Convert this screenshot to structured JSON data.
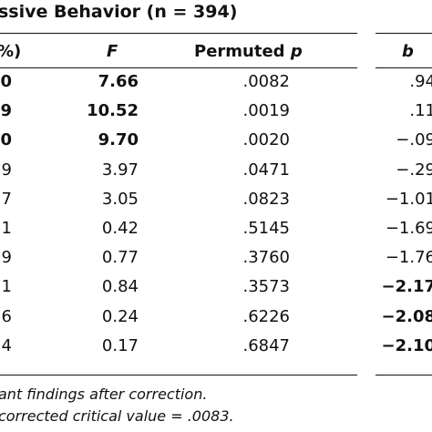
{
  "table": {
    "title": "ssive Behavior (n = 394)",
    "headers": {
      "pct": "%)",
      "F": "F",
      "permuted_p_prefix": "Permuted ",
      "permuted_p_italic": "p",
      "b": "b"
    },
    "rows": [
      {
        "pct": "0",
        "F": "7.66",
        "p": ".0082",
        "b": ".94",
        "bold_pct": true,
        "bold_F": true,
        "bold_b": false
      },
      {
        "pct": "9",
        "F": "10.52",
        "p": ".0019",
        "b": ".11",
        "bold_pct": true,
        "bold_F": true,
        "bold_b": false
      },
      {
        "pct": "0",
        "F": "9.70",
        "p": ".0020",
        "b": "−.09",
        "bold_pct": true,
        "bold_F": true,
        "bold_b": false
      },
      {
        "pct": "9",
        "F": "3.97",
        "p": ".0471",
        "b": "−.29",
        "bold_pct": false,
        "bold_F": false,
        "bold_b": false
      },
      {
        "pct": "7",
        "F": "3.05",
        "p": ".0823",
        "b": "−1.01",
        "bold_pct": false,
        "bold_F": false,
        "bold_b": false
      },
      {
        "pct": "1",
        "F": "0.42",
        "p": ".5145",
        "b": "−1.69",
        "bold_pct": false,
        "bold_F": false,
        "bold_b": false
      },
      {
        "pct": "9",
        "F": "0.77",
        "p": ".3760",
        "b": "−1.76",
        "bold_pct": false,
        "bold_F": false,
        "bold_b": false
      },
      {
        "pct": "1",
        "F": "0.84",
        "p": ".3573",
        "b": "−2.17",
        "bold_pct": false,
        "bold_F": false,
        "bold_b": true
      },
      {
        "pct": "6",
        "F": "0.24",
        "p": ".6226",
        "b": "−2.08",
        "bold_pct": false,
        "bold_F": false,
        "bold_b": true
      },
      {
        "pct": "4",
        "F": "0.17",
        "p": ".6847",
        "b": "−2.10",
        "bold_pct": false,
        "bold_F": false,
        "bold_b": true
      }
    ],
    "notes": [
      "ant findings after correction.",
      "corrected critical value = .0083."
    ]
  }
}
